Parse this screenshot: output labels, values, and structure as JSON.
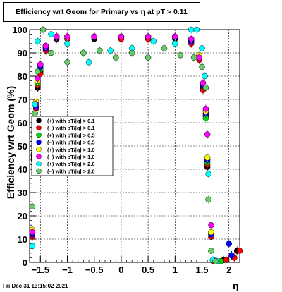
{
  "title": "Efficiency wrt Geom for Primary vs    η  at pT > 0.11",
  "footer": "Fri Dec 31 13:15:02 2021",
  "chart_data": {
    "type": "scatter",
    "xlabel": "η",
    "ylabel": "Efficiency wrt Geom (%)",
    "xlim": [
      -1.7,
      2.2
    ],
    "ylim": [
      0,
      100
    ],
    "x_ticks": [
      -1.5,
      -1,
      -0.5,
      0,
      0.5,
      1,
      1.5,
      2
    ],
    "x_tick_labels": [
      "−1.5",
      "−1",
      "−0.5",
      "0",
      "0.5",
      "1",
      "1.5",
      "2"
    ],
    "y_ticks": [
      0,
      10,
      20,
      30,
      40,
      50,
      60,
      70,
      80,
      90,
      100
    ],
    "y_tick_labels": [
      "0",
      "10",
      "20",
      "30",
      "40",
      "50",
      "60",
      "70",
      "80",
      "90",
      "100"
    ],
    "grid": true,
    "legend_position": "left-middle",
    "series": [
      {
        "name": "(+) with pT/|q| > 0.1",
        "color": "#000000",
        "points": [
          [
            -1.65,
            12
          ],
          [
            -1.62,
            45
          ],
          [
            -1.58,
            67
          ],
          [
            -1.55,
            75
          ],
          [
            -1.5,
            82
          ],
          [
            -1.4,
            92
          ],
          [
            -1.2,
            96
          ],
          [
            -1.0,
            96
          ],
          [
            -0.5,
            96
          ],
          [
            0,
            96
          ],
          [
            0.5,
            96
          ],
          [
            1.0,
            96
          ],
          [
            1.3,
            95
          ],
          [
            1.45,
            88
          ],
          [
            1.52,
            75
          ],
          [
            1.57,
            63
          ],
          [
            1.6,
            41
          ],
          [
            1.67,
            11
          ],
          [
            1.72,
            1
          ],
          [
            1.9,
            1
          ],
          [
            2.05,
            3
          ],
          [
            2.15,
            5
          ]
        ]
      },
      {
        "name": "(−) with pT/|q| > 0.1",
        "color": "#ff0000",
        "points": [
          [
            -1.65,
            11
          ],
          [
            -1.62,
            44
          ],
          [
            -1.58,
            66
          ],
          [
            -1.55,
            76
          ],
          [
            -1.5,
            81
          ],
          [
            -1.4,
            91
          ],
          [
            -1.2,
            97
          ],
          [
            -1.0,
            96
          ],
          [
            -0.5,
            97
          ],
          [
            0,
            96
          ],
          [
            0.5,
            96
          ],
          [
            1.0,
            97
          ],
          [
            1.3,
            94
          ],
          [
            1.45,
            87
          ],
          [
            1.52,
            74
          ],
          [
            1.57,
            63
          ],
          [
            1.6,
            42
          ],
          [
            1.67,
            11
          ],
          [
            1.72,
            0.5
          ],
          [
            1.95,
            1
          ],
          [
            2.1,
            2
          ],
          [
            2.2,
            5
          ]
        ]
      },
      {
        "name": "(+) with pT/|q| > 0.5",
        "color": "#00dd00",
        "points": [
          [
            -1.65,
            13
          ],
          [
            -1.62,
            46
          ],
          [
            -1.58,
            68
          ],
          [
            -1.55,
            77
          ],
          [
            -1.5,
            83
          ],
          [
            -1.4,
            93
          ],
          [
            -1.2,
            97
          ],
          [
            -1.0,
            97
          ],
          [
            -0.5,
            97
          ],
          [
            0,
            97
          ],
          [
            0.5,
            97
          ],
          [
            1.0,
            97
          ],
          [
            1.3,
            95
          ],
          [
            1.45,
            89
          ],
          [
            1.52,
            76
          ],
          [
            1.57,
            62
          ],
          [
            1.6,
            43
          ],
          [
            1.67,
            12
          ],
          [
            1.72,
            1
          ],
          [
            1.85,
            0.5
          ]
        ]
      },
      {
        "name": "(−) with pT/|q| > 0.5",
        "color": "#0000ff",
        "points": [
          [
            -1.65,
            12
          ],
          [
            -1.62,
            45
          ],
          [
            -1.58,
            67
          ],
          [
            -1.55,
            78
          ],
          [
            -1.5,
            84
          ],
          [
            -1.4,
            92
          ],
          [
            -1.2,
            97
          ],
          [
            -1.0,
            97
          ],
          [
            -0.5,
            97
          ],
          [
            0,
            97
          ],
          [
            0.5,
            97
          ],
          [
            1.0,
            97
          ],
          [
            1.3,
            95
          ],
          [
            1.45,
            88
          ],
          [
            1.52,
            76
          ],
          [
            1.57,
            64
          ],
          [
            1.6,
            44
          ],
          [
            1.67,
            12
          ],
          [
            1.72,
            1
          ],
          [
            2.0,
            8
          ],
          [
            2.05,
            3
          ]
        ]
      },
      {
        "name": "(+) with pT/|q| > 1.0",
        "color": "#ffff00",
        "points": [
          [
            -1.65,
            14
          ],
          [
            -1.62,
            47
          ],
          [
            -1.58,
            69
          ],
          [
            -1.55,
            78
          ],
          [
            -1.5,
            85
          ],
          [
            -1.4,
            93
          ],
          [
            -1.2,
            97
          ],
          [
            -1.0,
            97
          ],
          [
            -0.5,
            97
          ],
          [
            0,
            97
          ],
          [
            0.5,
            97
          ],
          [
            1.0,
            97
          ],
          [
            1.3,
            96
          ],
          [
            1.45,
            89
          ],
          [
            1.52,
            77
          ],
          [
            1.57,
            65
          ],
          [
            1.6,
            45
          ],
          [
            1.67,
            13
          ],
          [
            1.72,
            1
          ]
        ]
      },
      {
        "name": "(−) with pT/|q| > 1.0",
        "color": "#ff00ff",
        "points": [
          [
            -1.65,
            13
          ],
          [
            -1.62,
            46
          ],
          [
            -1.58,
            68
          ],
          [
            -1.55,
            79
          ],
          [
            -1.5,
            85
          ],
          [
            -1.4,
            93
          ],
          [
            -1.2,
            97
          ],
          [
            -1.0,
            97
          ],
          [
            -0.5,
            97
          ],
          [
            0,
            97
          ],
          [
            0.5,
            97
          ],
          [
            1.0,
            97
          ],
          [
            1.3,
            96
          ],
          [
            1.45,
            88
          ],
          [
            1.52,
            77
          ],
          [
            1.57,
            66
          ],
          [
            1.6,
            55
          ],
          [
            1.67,
            16
          ],
          [
            1.72,
            1
          ]
        ]
      },
      {
        "name": "(+) with pT/|q| > 2.0",
        "color": "#00ffff",
        "points": [
          [
            -1.65,
            7
          ],
          [
            -1.6,
            68
          ],
          [
            -1.55,
            95
          ],
          [
            -1.45,
            100
          ],
          [
            -1.3,
            98
          ],
          [
            -1.0,
            94
          ],
          [
            -0.6,
            86
          ],
          [
            -0.2,
            91
          ],
          [
            0.2,
            92
          ],
          [
            0.6,
            95
          ],
          [
            1.0,
            94
          ],
          [
            1.3,
            100
          ],
          [
            1.4,
            100
          ],
          [
            1.5,
            92
          ],
          [
            1.55,
            80
          ],
          [
            1.62,
            38
          ],
          [
            1.7,
            1
          ],
          [
            1.78,
            0.5
          ]
        ]
      },
      {
        "name": "(−) with pT/|q| > 2.0",
        "color": "#66cc66",
        "points": [
          [
            -1.65,
            24
          ],
          [
            -1.6,
            64
          ],
          [
            -1.55,
            82
          ],
          [
            -1.45,
            100
          ],
          [
            -1.3,
            90
          ],
          [
            -1.0,
            86
          ],
          [
            -0.7,
            90
          ],
          [
            -0.4,
            91
          ],
          [
            -0.1,
            88
          ],
          [
            0.2,
            90
          ],
          [
            0.5,
            88
          ],
          [
            0.8,
            92
          ],
          [
            1.1,
            89
          ],
          [
            1.35,
            88
          ],
          [
            1.5,
            84
          ],
          [
            1.57,
            75
          ],
          [
            1.62,
            27
          ],
          [
            1.67,
            5
          ],
          [
            1.75,
            0.5
          ]
        ]
      }
    ]
  }
}
